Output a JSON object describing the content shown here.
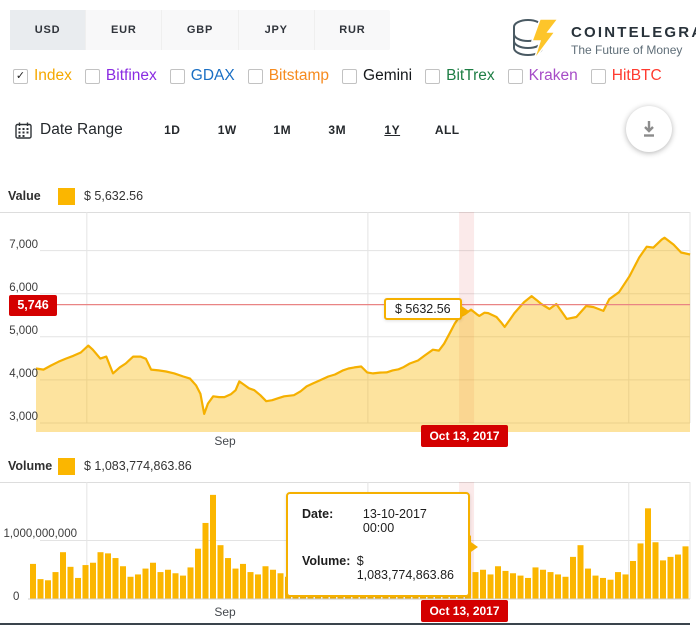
{
  "header": {
    "currency_tabs": [
      "USD",
      "EUR",
      "GBP",
      "JPY",
      "RUR"
    ],
    "active_tab": "USD",
    "logo": {
      "title": "COINTELEGRAPH",
      "tagline": "The Future of Money"
    }
  },
  "exchanges": [
    {
      "label": "Index",
      "checked": true,
      "color": "#f5a800"
    },
    {
      "label": "Bitfinex",
      "checked": false,
      "color": "#8a2be2"
    },
    {
      "label": "GDAX",
      "checked": false,
      "color": "#1a6fc4"
    },
    {
      "label": "Bitstamp",
      "checked": false,
      "color": "#f68b1f"
    },
    {
      "label": "Gemini",
      "checked": false,
      "color": "#15181b"
    },
    {
      "label": "BitTrex",
      "checked": false,
      "color": "#1e7e45"
    },
    {
      "label": "Kraken",
      "checked": false,
      "color": "#a64cc7"
    },
    {
      "label": "HitBTC",
      "checked": false,
      "color": "#ff3b30"
    }
  ],
  "date_range": {
    "label": "Date Range",
    "options": [
      "1D",
      "1W",
      "1M",
      "3M",
      "1Y",
      "ALL"
    ],
    "selected": "1Y"
  },
  "value_panel": {
    "label": "Value",
    "legend_value": "$ 5,632.56",
    "marker_value": "5,746",
    "tooltip": "$ 5632.56",
    "x_label": "Sep",
    "selected_date": "Oct 13, 2017"
  },
  "volume_panel": {
    "label": "Volume",
    "legend_value": "$ 1,083,774,863.86",
    "x_label": "Sep",
    "selected_date": "Oct 13, 2017",
    "tooltip": {
      "date_label": "Date:",
      "date": "13-10-2017 00:00",
      "volume_label": "Volume:",
      "volume": "$ 1,083,774,863.86"
    }
  },
  "colors": {
    "accent_yellow": "#fbb600",
    "badge_red": "#d40000",
    "marker_line": "#e98484",
    "area_fill": "rgba(251,182,0,0.38)",
    "grid": "#e3e3e3"
  },
  "chart_data": [
    {
      "type": "area",
      "title": "Value",
      "currency": "USD",
      "legend_value": 5632.56,
      "marker_value": 5746,
      "ylim": [
        3000,
        7900
      ],
      "yticks": [
        {
          "value": 3000,
          "label": "3,000"
        },
        {
          "value": 4000,
          "label": "4,000"
        },
        {
          "value": 5000,
          "label": "5,000"
        },
        {
          "value": 6000,
          "label": "6,000"
        },
        {
          "value": 7000,
          "label": "7,000"
        }
      ],
      "xticks": [
        "Sep"
      ],
      "month_gridline_days": [
        6.8,
        44.4,
        79.3
      ],
      "selected": {
        "day": 57.6,
        "value": 5632.56,
        "date": "Oct 13, 2017"
      },
      "points": [
        [
          0,
          4265
        ],
        [
          1,
          4240
        ],
        [
          2,
          4335
        ],
        [
          3,
          4420
        ],
        [
          4,
          4495
        ],
        [
          5,
          4560
        ],
        [
          6,
          4635
        ],
        [
          7,
          4795
        ],
        [
          7.6,
          4700
        ],
        [
          8.6,
          4495
        ],
        [
          9.4,
          4540
        ],
        [
          10.3,
          4150
        ],
        [
          11.2,
          4290
        ],
        [
          12,
          4380
        ],
        [
          13,
          4540
        ],
        [
          14,
          4540
        ],
        [
          14.7,
          4490
        ],
        [
          15.4,
          4240
        ],
        [
          16.4,
          4220
        ],
        [
          17.4,
          4195
        ],
        [
          18.5,
          4150
        ],
        [
          19.7,
          4080
        ],
        [
          20.6,
          4030
        ],
        [
          21.4,
          3875
        ],
        [
          22,
          3680
        ],
        [
          22.5,
          3210
        ],
        [
          23,
          3450
        ],
        [
          23.7,
          3620
        ],
        [
          24.5,
          3600
        ],
        [
          25.2,
          3600
        ],
        [
          26.1,
          3670
        ],
        [
          26.7,
          3760
        ],
        [
          27.2,
          3965
        ],
        [
          27.9,
          3880
        ],
        [
          28.5,
          3805
        ],
        [
          29.2,
          3760
        ],
        [
          30,
          3645
        ],
        [
          30.8,
          3505
        ],
        [
          31.6,
          3530
        ],
        [
          32.4,
          3575
        ],
        [
          33.2,
          3620
        ],
        [
          34.5,
          3645
        ],
        [
          35.4,
          3735
        ],
        [
          36.2,
          3850
        ],
        [
          37.1,
          3920
        ],
        [
          38,
          3990
        ],
        [
          39.1,
          4080
        ],
        [
          40,
          4125
        ],
        [
          41,
          4215
        ],
        [
          41.8,
          4265
        ],
        [
          42.6,
          4290
        ],
        [
          43.5,
          4310
        ],
        [
          44.3,
          4175
        ],
        [
          45.1,
          4150
        ],
        [
          46,
          4170
        ],
        [
          46.9,
          4175
        ],
        [
          47.7,
          4220
        ],
        [
          48.5,
          4245
        ],
        [
          49.1,
          4290
        ],
        [
          50,
          4380
        ],
        [
          51.1,
          4450
        ],
        [
          52,
          4565
        ],
        [
          53.1,
          4700
        ],
        [
          53.9,
          4680
        ],
        [
          54.6,
          4840
        ],
        [
          55.3,
          5070
        ],
        [
          56,
          5300
        ],
        [
          56.6,
          5460
        ],
        [
          57.4,
          5530
        ],
        [
          58.2,
          5632
        ],
        [
          59,
          5520
        ],
        [
          59.3,
          5485
        ],
        [
          60,
          5560
        ],
        [
          60.5,
          5550
        ],
        [
          61.6,
          5460
        ],
        [
          62.2,
          5340
        ],
        [
          62.7,
          5230
        ],
        [
          63.4,
          5400
        ],
        [
          64,
          5550
        ],
        [
          65.3,
          5805
        ],
        [
          66.3,
          5945
        ],
        [
          67,
          5850
        ],
        [
          67.6,
          5760
        ],
        [
          68.7,
          5645
        ],
        [
          69.6,
          5760
        ],
        [
          70.3,
          5590
        ],
        [
          71,
          5415
        ],
        [
          72.3,
          5460
        ],
        [
          73.6,
          5715
        ],
        [
          74.6,
          5690
        ],
        [
          75.9,
          5600
        ],
        [
          76.7,
          5875
        ],
        [
          78,
          6035
        ],
        [
          79.4,
          6405
        ],
        [
          80.7,
          6840
        ],
        [
          81.7,
          7090
        ],
        [
          82.6,
          7070
        ],
        [
          83.7,
          7255
        ],
        [
          84.1,
          7300
        ],
        [
          85.3,
          7140
        ],
        [
          86.3,
          6955
        ],
        [
          87.5,
          6910
        ]
      ]
    },
    {
      "type": "bar",
      "title": "Volume",
      "currency": "USD",
      "legend_value": 1083774863.86,
      "yticks": [
        {
          "value": 0,
          "label": "0"
        },
        {
          "value": 1000000000,
          "label": "1,000,000,000"
        }
      ],
      "xticks": [
        "Sep"
      ],
      "selected_index": 58,
      "selected_value": 1083774863.86,
      "values_billions": [
        0.6,
        0.34,
        0.32,
        0.46,
        0.8,
        0.55,
        0.36,
        0.58,
        0.62,
        0.8,
        0.78,
        0.7,
        0.56,
        0.38,
        0.42,
        0.52,
        0.62,
        0.46,
        0.5,
        0.44,
        0.4,
        0.54,
        0.86,
        1.3,
        1.78,
        0.92,
        0.7,
        0.52,
        0.6,
        0.46,
        0.42,
        0.56,
        0.5,
        0.44,
        0.38,
        0.34,
        0.5,
        0.46,
        0.54,
        0.48,
        0.42,
        0.38,
        0.34,
        0.31,
        0.28,
        0.34,
        0.31,
        0.36,
        0.4,
        0.34,
        0.46,
        0.43,
        0.38,
        0.4,
        0.6,
        0.5,
        0.44,
        0.4,
        1.0838,
        0.46,
        0.5,
        0.42,
        0.56,
        0.48,
        0.44,
        0.4,
        0.36,
        0.54,
        0.5,
        0.46,
        0.42,
        0.38,
        0.72,
        0.92,
        0.52,
        0.4,
        0.36,
        0.33,
        0.46,
        0.42,
        0.65,
        0.95,
        1.55,
        0.97,
        0.66,
        0.72,
        0.76,
        0.9
      ]
    }
  ]
}
